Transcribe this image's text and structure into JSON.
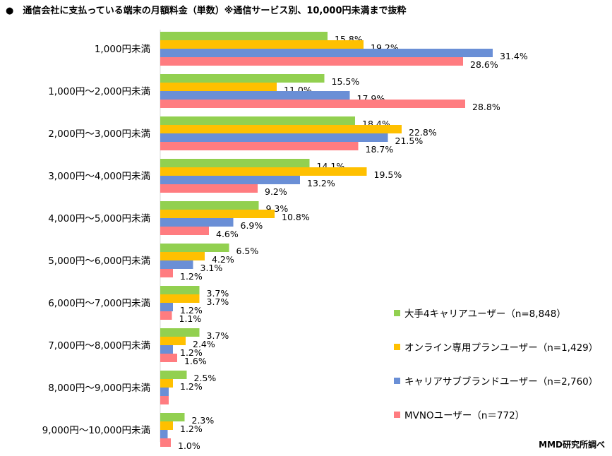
{
  "title": "●　通信会社に支払っている端末の月額料金（単数）※通信サービス別、10,000円未満まで抜粋",
  "source": "MMD研究所調べ",
  "chart_data": {
    "type": "bar",
    "orientation": "horizontal",
    "title": "●　通信会社に支払っている端末の月額料金（単数）※通信サービス別、10,000円未満まで抜粋",
    "categories": [
      "1,000円未満",
      "1,000円～2,000円未満",
      "2,000円～3,000円未満",
      "3,000円～4,000円未満",
      "4,000円～5,000円未満",
      "5,000円～6,000円未満",
      "6,000円～7,000円未満",
      "7,000円～8,000円未満",
      "8,000円～9,000円未満",
      "9,000円～10,000円未満"
    ],
    "series": [
      {
        "name": "大手4キャリアユーザー（n=8,848）",
        "color": "#92d050",
        "values": [
          15.8,
          15.5,
          18.4,
          14.1,
          9.3,
          6.5,
          3.7,
          3.7,
          2.5,
          2.3
        ]
      },
      {
        "name": "オンライン専用プランユーザー（n=1,429）",
        "color": "#ffc000",
        "values": [
          19.2,
          11.0,
          22.8,
          19.5,
          10.8,
          4.2,
          3.7,
          2.4,
          1.2,
          1.2
        ]
      },
      {
        "name": "キャリアサブブランドユーザー（n=2,760）",
        "color": "#6a8fd6",
        "values": [
          31.4,
          17.9,
          21.5,
          13.2,
          6.9,
          3.1,
          1.2,
          1.2,
          0.8,
          0.7
        ]
      },
      {
        "name": "MVNOユーザー（n＝772）",
        "color": "#ff7c80",
        "values": [
          28.6,
          28.8,
          18.7,
          9.2,
          4.6,
          1.2,
          1.1,
          1.6,
          0.8,
          1.0
        ]
      }
    ],
    "value_labels": [
      [
        "15.8%",
        "15.5%",
        "18.4%",
        "14.1%",
        "9.3%",
        "6.5%",
        "3.7%",
        "3.7%",
        "2.5%",
        "2.3%"
      ],
      [
        "19.2%",
        "11.0%",
        "22.8%",
        "19.5%",
        "10.8%",
        "4.2%",
        "3.7%",
        "2.4%",
        "1.2%",
        "1.2%"
      ],
      [
        "31.4%",
        "17.9%",
        "21.5%",
        "13.2%",
        "6.9%",
        "3.1%",
        "1.2%",
        "1.2%",
        "",
        ""
      ],
      [
        "28.6%",
        "28.8%",
        "18.7%",
        "9.2%",
        "4.6%",
        "1.2%",
        "1.1%",
        "1.6%",
        "",
        "1.0%"
      ]
    ],
    "xlim": [
      0,
      35
    ],
    "unit": "%",
    "legend_position": "bottom-right"
  }
}
